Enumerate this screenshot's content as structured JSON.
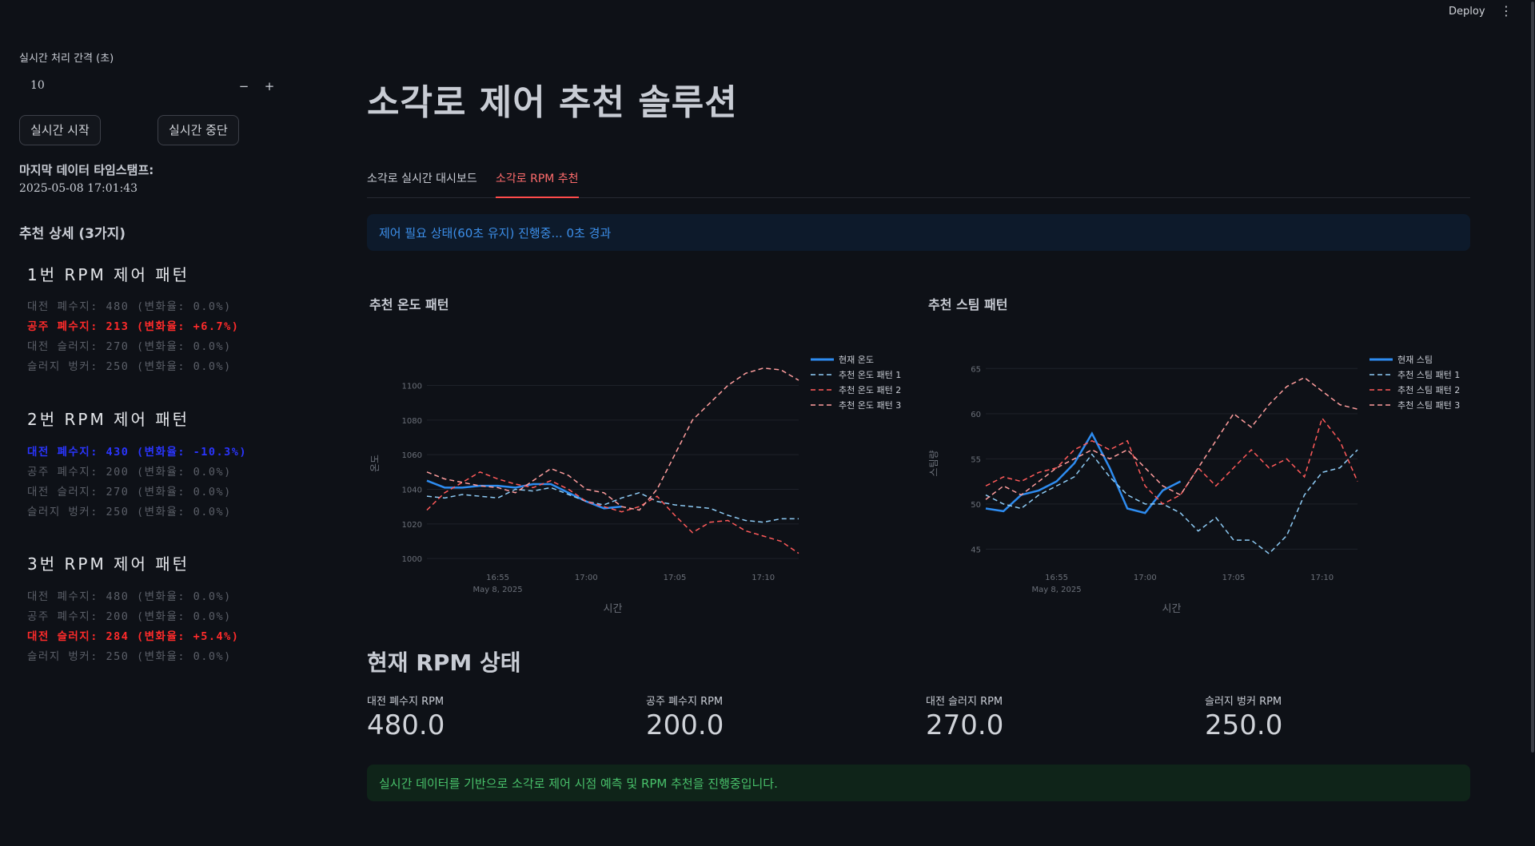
{
  "header": {
    "deploy_label": "Deploy",
    "menu_icon": "⋮"
  },
  "sidebar": {
    "interval_label": "실시간 처리 간격 (초)",
    "interval_value": "10",
    "minus": "−",
    "plus": "+",
    "start_label": "실시간 시작",
    "stop_label": "실시간 중단",
    "ts_label": "마지막 데이터 타임스탬프:",
    "ts_value": "2025-05-08 17:01:43",
    "rec_head": "추천 상세 (3가지)",
    "patterns": [
      {
        "title": "1번 RPM 제어 패턴",
        "lines": [
          {
            "text": "대전 폐수지: 480 (변화율: 0.0%)",
            "style": "gray"
          },
          {
            "text": "공주 폐수지: 213 (변화율: +6.7%)",
            "style": "red"
          },
          {
            "text": "대전 슬러지: 270 (변화율: 0.0%)",
            "style": "gray"
          },
          {
            "text": "슬러지 벙커: 250 (변화율: 0.0%)",
            "style": "gray"
          }
        ]
      },
      {
        "title": "2번 RPM 제어 패턴",
        "lines": [
          {
            "text": "대전 폐수지: 430 (변화율: -10.3%)",
            "style": "blue"
          },
          {
            "text": "공주 폐수지: 200 (변화율: 0.0%)",
            "style": "gray"
          },
          {
            "text": "대전 슬러지: 270 (변화율: 0.0%)",
            "style": "gray"
          },
          {
            "text": "슬러지 벙커: 250 (변화율: 0.0%)",
            "style": "gray"
          }
        ]
      },
      {
        "title": "3번 RPM 제어 패턴",
        "lines": [
          {
            "text": "대전 폐수지: 480 (변화율: 0.0%)",
            "style": "gray"
          },
          {
            "text": "공주 폐수지: 200 (변화율: 0.0%)",
            "style": "gray"
          },
          {
            "text": "대전 슬러지: 284 (변화율: +5.4%)",
            "style": "red"
          },
          {
            "text": "슬러지 벙커: 250 (변화율: 0.0%)",
            "style": "gray"
          }
        ]
      }
    ]
  },
  "main": {
    "title": "소각로 제어 추천 솔루션",
    "tabs": [
      {
        "label": "소각로 실시간 대시보드",
        "active": false
      },
      {
        "label": "소각로 RPM 추천",
        "active": true
      }
    ],
    "info": "제어 필요 상태(60초 유지) 진행중... 0초 경과",
    "rpm_section_title": "현재 RPM 상태",
    "metrics": [
      {
        "label": "대전 폐수지 RPM",
        "value": "480.0"
      },
      {
        "label": "공주 폐수지 RPM",
        "value": "200.0"
      },
      {
        "label": "대전 슬러지 RPM",
        "value": "270.0"
      },
      {
        "label": "슬러지 벙커 RPM",
        "value": "250.0"
      }
    ],
    "success": "실시간 데이터를 기반으로 소각로 제어 시점 예측 및 RPM 추천을 진행중입니다."
  },
  "colors": {
    "current": "#2e8cf0",
    "pattern1": "#8ecbf5",
    "pattern2": "#ff5a5a",
    "pattern3": "#ff9d9d"
  },
  "chart_data": [
    {
      "type": "line",
      "title": "추천 온도 패턴",
      "xlabel": "시간",
      "ylabel": "온도",
      "x_ticks": [
        "16:55",
        "17:00",
        "17:05",
        "17:10"
      ],
      "x_sub": "May 8, 2025",
      "xlim": [
        "16:51",
        "17:12"
      ],
      "y_ticks": [
        1000,
        1020,
        1040,
        1060,
        1080,
        1100
      ],
      "ylim": [
        995,
        1115
      ],
      "legend_position": "right",
      "series": [
        {
          "name": "현재 온도",
          "style": "solid",
          "x": [
            "16:51",
            "16:52",
            "16:53",
            "16:54",
            "16:55",
            "16:56",
            "16:57",
            "16:58",
            "16:59",
            "17:00",
            "17:01",
            "17:02"
          ],
          "y": [
            1045,
            1041,
            1041,
            1042,
            1042,
            1041,
            1043,
            1043,
            1038,
            1033,
            1029,
            1030
          ]
        },
        {
          "name": "추천 온도 패턴 1",
          "style": "dash",
          "x": [
            "16:51",
            "16:52",
            "16:53",
            "16:54",
            "16:55",
            "16:56",
            "16:57",
            "16:58",
            "16:59",
            "17:00",
            "17:01",
            "17:02",
            "17:03",
            "17:04",
            "17:05",
            "17:06",
            "17:07",
            "17:08",
            "17:09",
            "17:10",
            "17:11",
            "17:12"
          ],
          "y": [
            1036,
            1035,
            1037,
            1036,
            1035,
            1040,
            1039,
            1041,
            1037,
            1033,
            1031,
            1035,
            1038,
            1033,
            1031,
            1030,
            1029,
            1025,
            1022,
            1021,
            1023,
            1023
          ]
        },
        {
          "name": "추천 온도 패턴 2",
          "style": "dash",
          "x": [
            "16:51",
            "16:52",
            "16:53",
            "16:54",
            "16:55",
            "16:56",
            "16:57",
            "16:58",
            "16:59",
            "17:00",
            "17:01",
            "17:02",
            "17:03",
            "17:04",
            "17:05",
            "17:06",
            "17:07",
            "17:08",
            "17:09",
            "17:10",
            "17:11",
            "17:12"
          ],
          "y": [
            1028,
            1038,
            1044,
            1050,
            1046,
            1043,
            1041,
            1045,
            1040,
            1033,
            1030,
            1027,
            1030,
            1036,
            1025,
            1015,
            1021,
            1022,
            1016,
            1013,
            1010,
            1003
          ]
        },
        {
          "name": "추천 온도 패턴 3",
          "style": "dash",
          "x": [
            "16:51",
            "16:52",
            "16:53",
            "16:54",
            "16:55",
            "16:56",
            "16:57",
            "16:58",
            "16:59",
            "17:00",
            "17:01",
            "17:02",
            "17:03",
            "17:04",
            "17:05",
            "17:06",
            "17:07",
            "17:08",
            "17:09",
            "17:10",
            "17:11",
            "17:12"
          ],
          "y": [
            1050,
            1046,
            1044,
            1042,
            1041,
            1038,
            1045,
            1052,
            1048,
            1040,
            1038,
            1030,
            1028,
            1040,
            1060,
            1080,
            1090,
            1100,
            1107,
            1110,
            1109,
            1103
          ]
        }
      ]
    },
    {
      "type": "line",
      "title": "추천 스팀 패턴",
      "xlabel": "시간",
      "ylabel": "스팀량",
      "x_ticks": [
        "16:55",
        "17:00",
        "17:05",
        "17:10"
      ],
      "x_sub": "May 8, 2025",
      "xlim": [
        "16:51",
        "17:12"
      ],
      "y_ticks": [
        45,
        50,
        55,
        60,
        65
      ],
      "ylim": [
        43,
        66
      ],
      "legend_position": "right",
      "series": [
        {
          "name": "현재 스팀",
          "style": "solid",
          "x": [
            "16:51",
            "16:52",
            "16:53",
            "16:54",
            "16:55",
            "16:56",
            "16:57",
            "16:58",
            "16:59",
            "17:00",
            "17:01",
            "17:02"
          ],
          "y": [
            49.5,
            49.2,
            51,
            51.5,
            52.5,
            54.5,
            57.8,
            54,
            49.5,
            49,
            51.5,
            52.5
          ]
        },
        {
          "name": "추천 스팀 패턴 1",
          "style": "dash",
          "x": [
            "16:51",
            "16:52",
            "16:53",
            "16:54",
            "16:55",
            "16:56",
            "16:57",
            "16:58",
            "16:59",
            "17:00",
            "17:01",
            "17:02",
            "17:03",
            "17:04",
            "17:05",
            "17:06",
            "17:07",
            "17:08",
            "17:09",
            "17:10",
            "17:11",
            "17:12"
          ],
          "y": [
            51,
            50,
            49.5,
            51,
            52,
            53,
            55.5,
            53,
            51,
            50,
            50,
            49,
            47,
            48.5,
            46,
            46,
            44.5,
            46.5,
            51,
            53.5,
            54,
            56
          ]
        },
        {
          "name": "추천 스팀 패턴 2",
          "style": "dash",
          "x": [
            "16:51",
            "16:52",
            "16:53",
            "16:54",
            "16:55",
            "16:56",
            "16:57",
            "16:58",
            "16:59",
            "17:00",
            "17:01",
            "17:02",
            "17:03",
            "17:04",
            "17:05",
            "17:06",
            "17:07",
            "17:08",
            "17:09",
            "17:10",
            "17:11",
            "17:12"
          ],
          "y": [
            52,
            53,
            52.5,
            53.5,
            54,
            56,
            57,
            56,
            57,
            52,
            50,
            51,
            54,
            52,
            54,
            56,
            54,
            55,
            53,
            59.5,
            57,
            52.5
          ]
        },
        {
          "name": "추천 스팀 패턴 3",
          "style": "dash",
          "x": [
            "16:51",
            "16:52",
            "16:53",
            "16:54",
            "16:55",
            "16:56",
            "16:57",
            "16:58",
            "16:59",
            "17:00",
            "17:01",
            "17:02",
            "17:03",
            "17:04",
            "17:05",
            "17:06",
            "17:07",
            "17:08",
            "17:09",
            "17:10",
            "17:11",
            "17:12"
          ],
          "y": [
            50.5,
            52,
            51,
            52.5,
            54,
            55,
            56,
            55,
            56,
            54,
            52,
            51,
            54,
            57,
            60,
            58.5,
            61,
            63,
            64,
            62.5,
            61,
            60.5
          ]
        }
      ]
    }
  ]
}
